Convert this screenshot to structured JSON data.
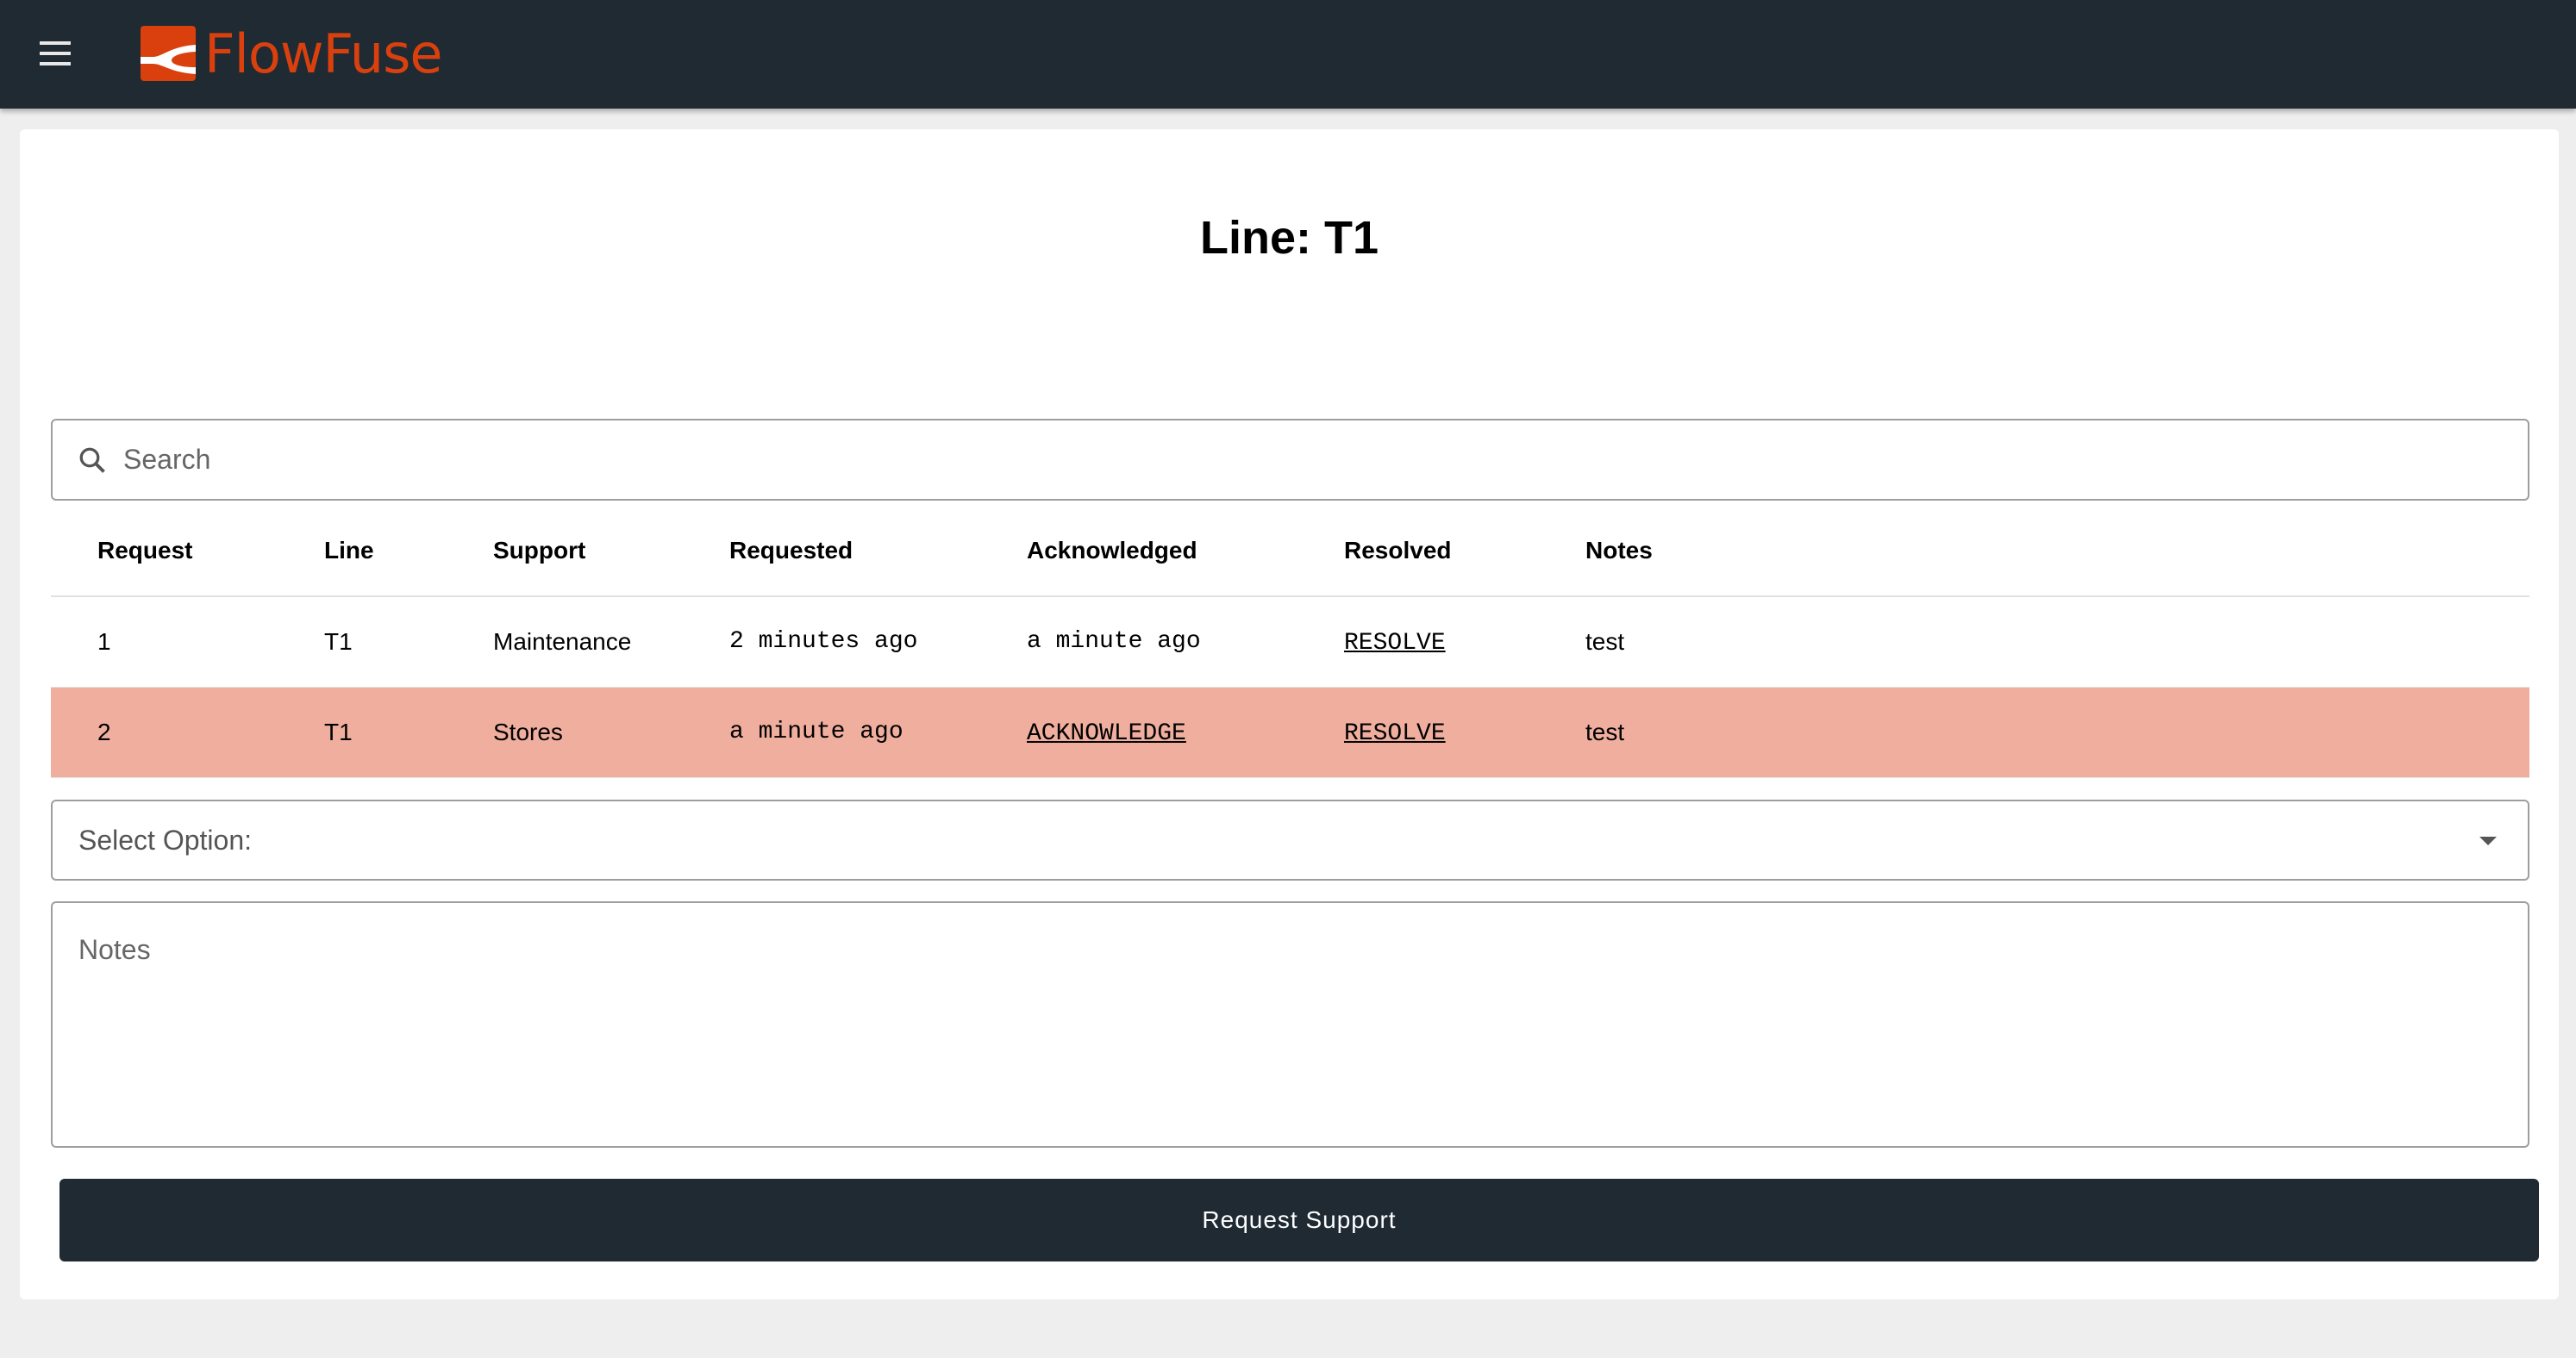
{
  "header": {
    "brand": "FlowFuse",
    "menu_icon": "hamburger-icon",
    "brand_color": "#d9400e",
    "bg_color": "#1f2a33"
  },
  "main": {
    "title": "Line: T1",
    "search": {
      "placeholder": "Search",
      "value": ""
    },
    "table": {
      "columns": [
        "Request",
        "Line",
        "Support",
        "Requested",
        "Acknowledged",
        "Resolved",
        "Notes"
      ],
      "rows": [
        {
          "request": "1",
          "line": "T1",
          "support": "Maintenance",
          "requested": "2 minutes ago",
          "acknowledged": "a minute ago",
          "resolved": "RESOLVE",
          "notes": "test",
          "highlight": false
        },
        {
          "request": "2",
          "line": "T1",
          "support": "Stores",
          "requested": "a minute ago",
          "acknowledged": "ACKNOWLEDGE",
          "resolved": "RESOLVE",
          "notes": "test",
          "highlight": true
        }
      ],
      "highlight_color": "#f0af9e"
    },
    "select": {
      "label": "Select Option:"
    },
    "notes": {
      "placeholder": "Notes"
    },
    "submit_label": "Request Support"
  }
}
